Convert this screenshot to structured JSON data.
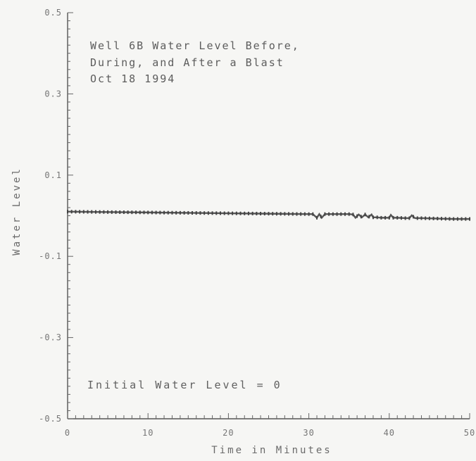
{
  "chart_data": {
    "type": "line",
    "title_lines": [
      "Well 6B Water Level Before,",
      "During, and After a Blast",
      "Oct 18 1994"
    ],
    "annotation": "Initial Water Level = 0",
    "xlabel": "Time in Minutes",
    "ylabel": "Water Level",
    "xlim": [
      0,
      50
    ],
    "ylim": [
      -0.5,
      0.5
    ],
    "x_ticks": [
      0,
      10,
      20,
      30,
      40,
      50
    ],
    "x_tick_labels": [
      "0",
      "10",
      "20",
      "30",
      "40",
      "50"
    ],
    "y_ticks": [
      0.5,
      0.3,
      0.1,
      -0.1,
      -0.3,
      -0.5
    ],
    "y_tick_labels": [
      "0.5",
      "0.3",
      "0.1",
      "-0.1",
      "-0.3",
      "-0.5"
    ],
    "grid": false,
    "legend": "none",
    "series": [
      {
        "x": [
          0,
          5,
          10,
          15,
          20,
          25,
          30,
          30.5,
          31,
          31.3,
          31.6,
          32,
          32.5,
          33,
          35,
          35.5,
          35.8,
          36.2,
          36.6,
          37,
          37.4,
          37.8,
          38,
          38.5,
          39,
          39.5,
          40,
          40.2,
          40.5,
          41,
          42,
          42.5,
          42.8,
          43.2,
          44,
          46,
          48,
          50
        ],
        "y": [
          0.01,
          0.009,
          0.008,
          0.007,
          0.006,
          0.005,
          0.004,
          0.004,
          -0.005,
          0.004,
          -0.005,
          0.004,
          0.004,
          0.004,
          0.004,
          0.003,
          -0.005,
          0.003,
          -0.004,
          0.003,
          -0.004,
          0.003,
          -0.004,
          -0.004,
          -0.005,
          -0.005,
          -0.005,
          0.002,
          -0.005,
          -0.005,
          -0.006,
          -0.006,
          0.001,
          -0.006,
          -0.006,
          -0.007,
          -0.008,
          -0.008
        ]
      }
    ]
  }
}
